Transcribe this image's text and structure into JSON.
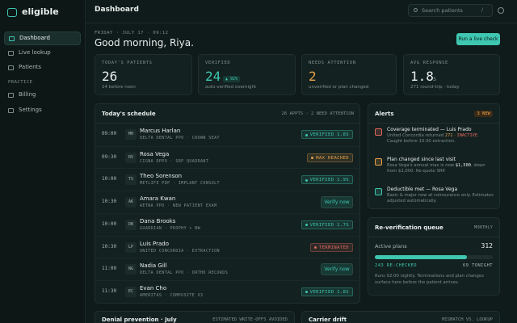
{
  "sidebar": {
    "brand": "eligible",
    "nav": [
      "Dashboard",
      "Live lookup",
      "Patients"
    ],
    "section": "PRACTICE",
    "practice_nav": [
      "Billing",
      "Settings"
    ]
  },
  "topbar": {
    "title": "Dashboard",
    "search_placeholder": "Search patients",
    "shortcut": "/"
  },
  "header": {
    "date": "FRIDAY · JULY 17 · 09:12",
    "greeting": "Good morning, Riya.",
    "button": "Run a live check"
  },
  "stats": [
    {
      "label": "TODAY'S PATIENTS",
      "value": "26",
      "note": "14 before noon",
      "color": "#e8eeec"
    },
    {
      "label": "VERIFIED",
      "value": "24",
      "badge": "▲ 92%",
      "note": "auto-verified overnight",
      "color": "#3ec6b0"
    },
    {
      "label": "NEEDS ATTENTION",
      "value": "2",
      "note": "unverified or plan changed",
      "color": "#e8a04a"
    },
    {
      "label": "AVG RESPONSE",
      "value": "1.8",
      "unit": "s",
      "note": "271 round-trip · today",
      "color": "#e8eeec"
    }
  ],
  "schedule": {
    "title": "Today's schedule",
    "summary": "26 APPTS · 2 NEED ATTENTION",
    "rows": [
      {
        "time": "09:00",
        "initials": "MH",
        "name": "Marcus Harlan",
        "detail": "DELTA DENTAL PPO · CROWN SEAT",
        "status": "VERIFIED 1.8S",
        "status_color": "#3ec6b0"
      },
      {
        "time": "09:30",
        "initials": "RV",
        "name": "Rosa Vega",
        "detail": "CIGNA DPPO · SRP QUADRANT",
        "status": "MAX REACHED",
        "status_color": "#e8a04a"
      },
      {
        "time": "10:00",
        "initials": "TS",
        "name": "Theo Sorenson",
        "detail": "METLIFE PDP · IMPLANT CONSULT",
        "status": "VERIFIED 1.9S",
        "status_color": "#3ec6b0"
      },
      {
        "time": "10:30",
        "initials": "AK",
        "name": "Amara Kwan",
        "detail": "AETNA PPO · NEW PATIENT EXAM",
        "action": "Verify now"
      },
      {
        "time": "10:00",
        "initials": "DB",
        "name": "Dana Brooks",
        "detail": "GUARDIAN · PROPHY + BW",
        "status": "VERIFIED 1.7S",
        "status_color": "#3ec6b0"
      },
      {
        "time": "10:30",
        "initials": "LP",
        "name": "Luis Prado",
        "detail": "UNITED CONCORDIA · EXTRACTION",
        "status": "TERMINATED",
        "status_color": "#e0675e"
      },
      {
        "time": "11:00",
        "initials": "NG",
        "name": "Nadia Gill",
        "detail": "DELTA DENTAL PPO · ORTHO RECORDS",
        "action": "Verify now"
      },
      {
        "time": "11:30",
        "initials": "EC",
        "name": "Evan Cho",
        "detail": "AMERITAS · COMPOSITE X3",
        "status": "VERIFIED 1.8S",
        "status_color": "#3ec6b0"
      }
    ]
  },
  "alerts": {
    "title": "Alerts",
    "badge": "3 NEW",
    "items": [
      {
        "title": "Coverage terminated — Luis Prado",
        "icon_color": "#e0675e",
        "body": [
          {
            "text": "United Concordia returned "
          },
          {
            "text": "271",
            "color": "#e8a04a"
          },
          {
            "text": " · "
          },
          {
            "text": "INACTIVE",
            "color": "#e0675e"
          },
          {
            "text": ". Caught before 10:30 extraction."
          }
        ]
      },
      {
        "title": "Plan changed since last visit",
        "icon_color": "#e8a04a",
        "body": [
          {
            "text": "Rosa Vega's annual max is now "
          },
          {
            "text": "$1,500",
            "color": "#e8eeec"
          },
          {
            "text": ", down from $2,000. Re-quote SRP."
          }
        ]
      },
      {
        "title": "Deductible met — Rosa Vega",
        "icon_color": "#3ec6b0",
        "body": [
          {
            "text": "Basic & major now at coinsurance only. Estimates adjusted automatically."
          }
        ]
      }
    ]
  },
  "queue": {
    "title": "Re-verification queue",
    "period": "MONTHLY",
    "label": "Active plans",
    "total": 312,
    "rechecked": 243,
    "rechecked_label": "RE-CHECKED",
    "tonight": 69,
    "tonight_label": "TONIGHT",
    "note": "Runs 02:00 nightly. Terminations and plan changes surface here before the patient arrives."
  },
  "bottom": [
    {
      "title": "Denial prevention · July",
      "note": "ESTIMATED WRITE-OFFS AVOIDED"
    },
    {
      "title": "Carrier drift",
      "note": "MISMATCH VS. LOOKUP"
    }
  ]
}
